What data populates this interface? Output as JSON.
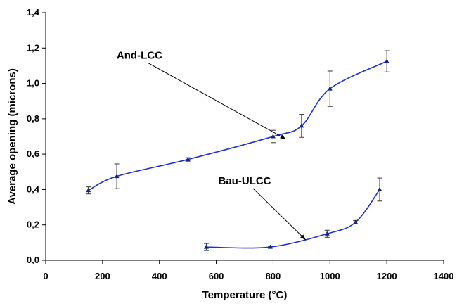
{
  "chart_data": {
    "type": "line",
    "title": "",
    "xlabel": "Temperature (°C)",
    "ylabel": "Average opening (microns)",
    "xlim": [
      0,
      1400
    ],
    "ylim": [
      0,
      1.4
    ],
    "x_ticks": [
      0,
      200,
      400,
      600,
      800,
      1000,
      1200,
      1400
    ],
    "x_tick_labels": [
      "0",
      "200",
      "400",
      "600",
      "800",
      "1000",
      "1200",
      "1400"
    ],
    "y_ticks": [
      0,
      0.2,
      0.4,
      0.6,
      0.8,
      1.0,
      1.2,
      1.4
    ],
    "y_tick_labels": [
      "0,0",
      "0,2",
      "0,4",
      "0,6",
      "0,8",
      "1,0",
      "1,2",
      "1,4"
    ],
    "grid": false,
    "line_color": "#1f2fd6",
    "marker_color": "#1a237e",
    "series": [
      {
        "name": "And-LCC",
        "points": [
          {
            "x": 150,
            "y": 0.395,
            "err": 0.02
          },
          {
            "x": 250,
            "y": 0.475,
            "err": 0.07
          },
          {
            "x": 500,
            "y": 0.57,
            "err": 0.01
          },
          {
            "x": 800,
            "y": 0.7,
            "err": 0.035
          },
          {
            "x": 900,
            "y": 0.76,
            "err": 0.065
          },
          {
            "x": 1000,
            "y": 0.97,
            "err": 0.1
          },
          {
            "x": 1200,
            "y": 1.125,
            "err": 0.06
          }
        ]
      },
      {
        "name": "Bau-ULCC",
        "points": [
          {
            "x": 565,
            "y": 0.075,
            "err": 0.02
          },
          {
            "x": 790,
            "y": 0.075,
            "err": 0.005
          },
          {
            "x": 990,
            "y": 0.15,
            "err": 0.02
          },
          {
            "x": 1090,
            "y": 0.215,
            "err": 0.01
          },
          {
            "x": 1175,
            "y": 0.4,
            "err": 0.065
          }
        ]
      }
    ],
    "annotations": [
      {
        "text": "And-LCC",
        "text_at": [
          330,
          1.14
        ],
        "arrow_to": [
          845,
          0.685
        ]
      },
      {
        "text": "Bau-ULCC",
        "text_at": [
          700,
          0.43
        ],
        "arrow_to": [
          915,
          0.115
        ]
      }
    ]
  }
}
